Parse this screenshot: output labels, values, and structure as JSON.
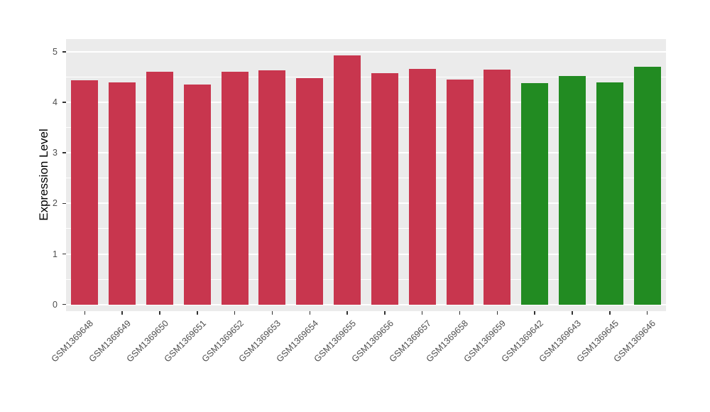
{
  "chart_data": {
    "type": "bar",
    "title": "",
    "xlabel": "",
    "ylabel": "Expression Level",
    "ylim": [
      -0.13,
      5.25
    ],
    "yticks": [
      0,
      1,
      2,
      3,
      4,
      5
    ],
    "minor_step": 0.5,
    "grid": "on",
    "legend": "none",
    "panel_bg": "#EBEBEB",
    "grid_color": "#FFFFFF",
    "bar_width_fraction": 0.72,
    "categories": [
      "GSM1369648",
      "GSM1369649",
      "GSM1369650",
      "GSM1369651",
      "GSM1369652",
      "GSM1369653",
      "GSM1369654",
      "GSM1369655",
      "GSM1369656",
      "GSM1369657",
      "GSM1369658",
      "GSM1369659",
      "GSM1369642",
      "GSM1369643",
      "GSM1369645",
      "GSM1369646"
    ],
    "values": [
      4.43,
      4.4,
      4.6,
      4.35,
      4.6,
      4.63,
      4.48,
      4.93,
      4.57,
      4.66,
      4.45,
      4.64,
      4.38,
      4.52,
      4.39,
      4.7
    ],
    "colors": [
      "#C8364E",
      "#C8364E",
      "#C8364E",
      "#C8364E",
      "#C8364E",
      "#C8364E",
      "#C8364E",
      "#C8364E",
      "#C8364E",
      "#C8364E",
      "#C8364E",
      "#C8364E",
      "#228B22",
      "#228B22",
      "#228B22",
      "#228B22"
    ],
    "palette": {
      "group1": "#C8364E",
      "group2": "#228B22"
    }
  }
}
